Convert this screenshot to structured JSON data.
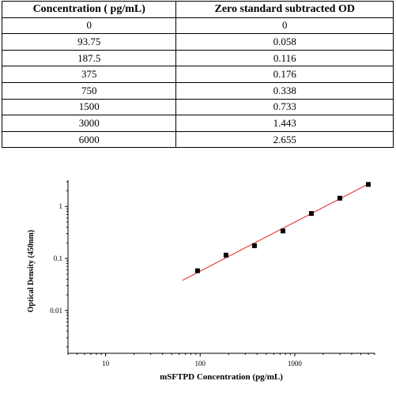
{
  "table": {
    "headers": [
      "Concentration ( pg/mL)",
      "Zero standard subtracted OD"
    ],
    "rows": [
      [
        "0",
        "0"
      ],
      [
        "93.75",
        "0.058"
      ],
      [
        "187.5",
        "0.116"
      ],
      [
        "375",
        "0.176"
      ],
      [
        "750",
        "0.338"
      ],
      [
        "1500",
        "0.733"
      ],
      [
        "3000",
        "1.443"
      ],
      [
        "6000",
        "2.655"
      ]
    ]
  },
  "chart_data": {
    "type": "scatter",
    "xlabel": "mSFTPD Concentration (pg/mL)",
    "ylabel": "Optical Density (450nm)",
    "xscale": "log",
    "yscale": "log",
    "xlim": [
      4,
      7000
    ],
    "ylim": [
      0.0015,
      3.2
    ],
    "x_ticks": [
      10,
      100,
      1000
    ],
    "x_tick_labels": [
      "10",
      "100",
      "1000"
    ],
    "y_ticks": [
      0.01,
      0.1,
      1
    ],
    "y_tick_labels": [
      "0.01",
      "0.1",
      "1"
    ],
    "grid": false,
    "points": [
      {
        "x": 93.75,
        "y": 0.058
      },
      {
        "x": 187.5,
        "y": 0.116
      },
      {
        "x": 375,
        "y": 0.176
      },
      {
        "x": 750,
        "y": 0.338
      },
      {
        "x": 1500,
        "y": 0.733
      },
      {
        "x": 3000,
        "y": 1.443
      },
      {
        "x": 6000,
        "y": 2.655
      }
    ],
    "fit_line": {
      "color": "#e02020",
      "x_start": 65,
      "x_end": 6000,
      "y_start": 0.038,
      "y_end": 2.7
    },
    "marker_color": "#000000"
  }
}
